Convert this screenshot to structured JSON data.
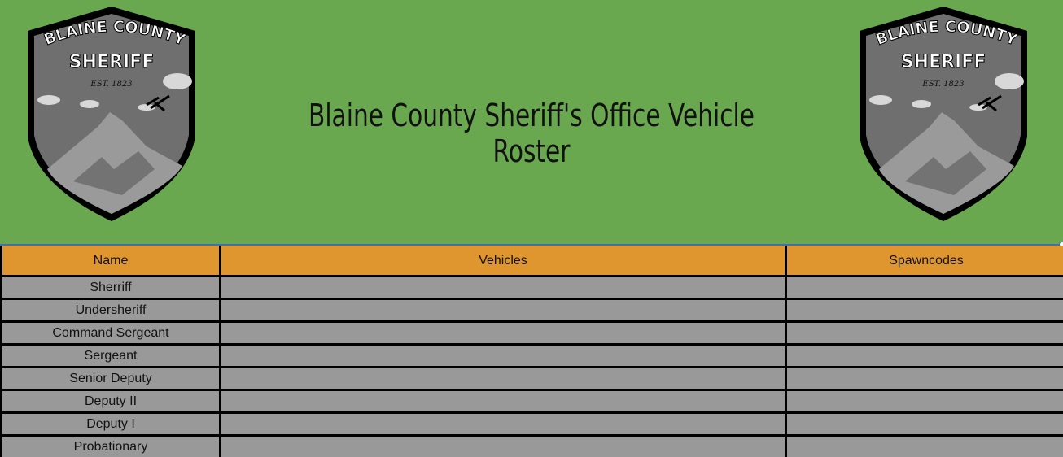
{
  "header": {
    "title": "Blaine County Sheriff's Office Vehicle Roster",
    "background": "#6aa84f",
    "badge": {
      "line1": "BLAINE COUNTY",
      "line2": "SHERIFF",
      "line3": "EST. 1823"
    }
  },
  "table": {
    "header_color": "#e0962f",
    "row_color": "#999999",
    "columns": [
      "Name",
      "Vehicles",
      "Spawncodes"
    ],
    "rows": [
      {
        "name": "Sherriff",
        "vehicles": "",
        "spawncodes": ""
      },
      {
        "name": "Undersheriff",
        "vehicles": "",
        "spawncodes": ""
      },
      {
        "name": "Command Sergeant",
        "vehicles": "",
        "spawncodes": ""
      },
      {
        "name": "Sergeant",
        "vehicles": "",
        "spawncodes": ""
      },
      {
        "name": "Senior Deputy",
        "vehicles": "",
        "spawncodes": ""
      },
      {
        "name": "Deputy II",
        "vehicles": "",
        "spawncodes": ""
      },
      {
        "name": "Deputy I",
        "vehicles": "",
        "spawncodes": ""
      },
      {
        "name": "Probationary",
        "vehicles": "",
        "spawncodes": ""
      }
    ]
  }
}
